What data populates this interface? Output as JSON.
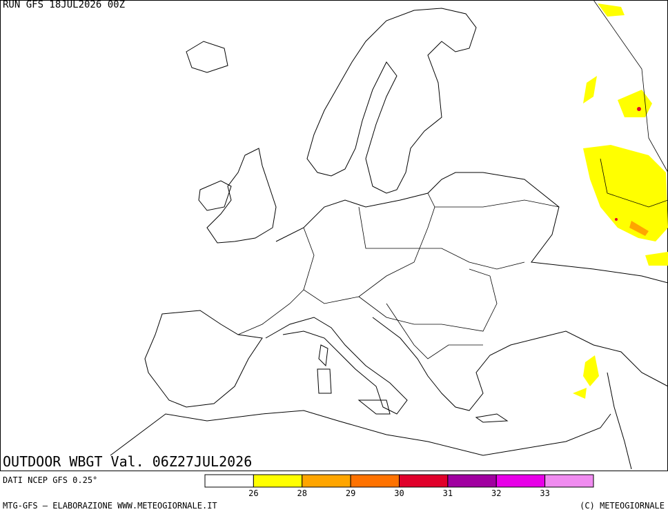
{
  "header": {
    "run": "RUN GFS 18JUL2026 00Z"
  },
  "map": {
    "title": "OUTDOOR WBGT Val. 06Z27JUL2026"
  },
  "legend": {
    "colors": [
      "#ffffff",
      "#ffff00",
      "#ffa500",
      "#ff7200",
      "#e0002a",
      "#a000a0",
      "#e800e8",
      "#f08cf0"
    ],
    "ticks": [
      26,
      28,
      29,
      30,
      31,
      32,
      33
    ]
  },
  "footer": {
    "source": "DATI NCEP GFS 0.25°",
    "credit": "MTG-GFS — ELABORAZIONE WWW.METEOGIORNALE.IT",
    "copyright": "(C) METEOGIORNALE"
  }
}
